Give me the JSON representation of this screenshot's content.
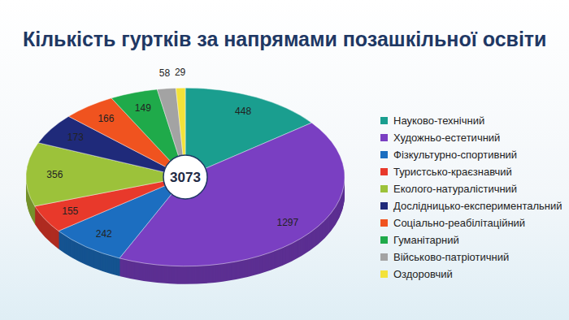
{
  "chart_data": {
    "type": "pie",
    "title": "Кількість гуртків за напрямами позашкільної освіти",
    "categories": [
      "Науково-технічний",
      "Художньо-естетичний",
      "Фізкультурно-спортивний",
      "Туристсько-краєзнавчий",
      "Еколого-натуралістичний",
      "Дослідницько-експериментальний",
      "Соціально-реабілітаційний",
      "Гуманітарний",
      "Військово-патріотичний",
      "Оздоровчий"
    ],
    "values": [
      448,
      1297,
      242,
      155,
      356,
      173,
      166,
      149,
      58,
      29
    ],
    "colors": [
      "#1a9e8f",
      "#7a3fc2",
      "#1c6ec0",
      "#e8392b",
      "#9cc23a",
      "#1f2a7a",
      "#f0531f",
      "#1faa4a",
      "#a3a3a3",
      "#f3e23a"
    ],
    "total": 3073,
    "data_labels": true,
    "legend": "right"
  }
}
